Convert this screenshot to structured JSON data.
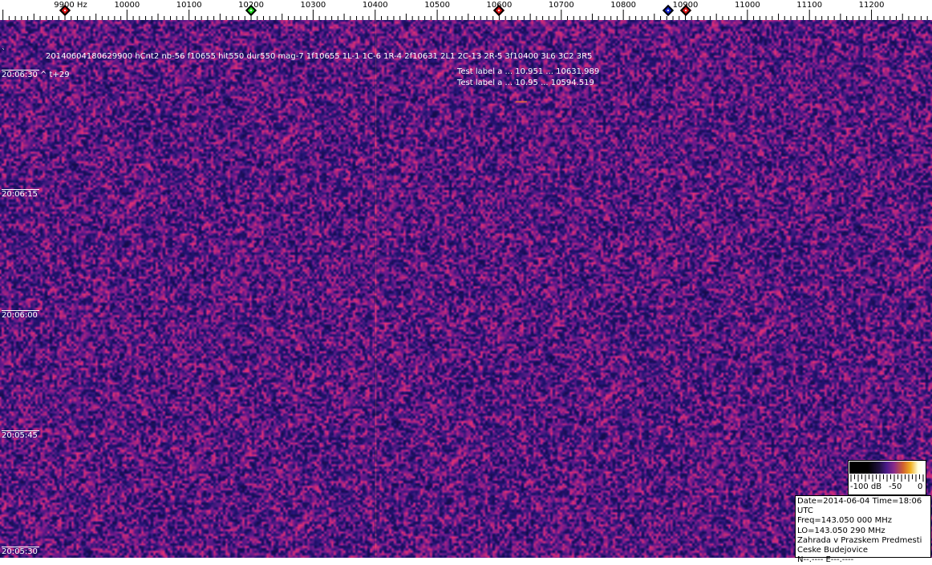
{
  "axis": {
    "unit_label": "9900 Hz",
    "freq_labels": [
      "10000",
      "10100",
      "10200",
      "10300",
      "10400",
      "10500",
      "10600",
      "10700",
      "10800",
      "10900",
      "11000",
      "11100",
      "11200"
    ],
    "freq_values": [
      10000,
      10100,
      10200,
      10300,
      10400,
      10500,
      10600,
      10700,
      10800,
      10900,
      11000,
      11100,
      11200
    ],
    "markers": [
      {
        "name": "red-marker",
        "freq": 9900,
        "color": "#dd1111"
      },
      {
        "name": "green-marker",
        "freq": 10200,
        "color": "#22dd22"
      },
      {
        "name": "red-marker",
        "freq": 10600,
        "color": "#dd1111"
      },
      {
        "name": "blue-marker",
        "freq": 10872,
        "color": "#1122cc"
      },
      {
        "name": "red-marker",
        "freq": 10900,
        "color": "#dd1111"
      }
    ]
  },
  "waterfall": {
    "detection_line": "20140604180629900 hCnt2 nb-56 f10655 hit550 dur550 mag-7 1f10655 1L-1 1C-6 1R-4 2f10631 2L1 2C-13 2R-5 3f10400 3L6 3C2 3R5",
    "backtick": "`",
    "time_note": "^ t+29",
    "test_label_1": "Test label a  ... 10.951 ... 10631.989",
    "test_label_2": "Test label a  ... 10.95 ... 10594.519",
    "time_labels": [
      "20:06:30",
      "20:06:15",
      "20:06:00",
      "20:05:45",
      "20:05:30"
    ]
  },
  "colorscale": {
    "labels": [
      "-100 dB",
      "-50",
      "0"
    ]
  },
  "info": {
    "date_time": "Date=2014-06-04 Time=18:06 UTC",
    "freq": "Freq=143.050 000 MHz",
    "lo": "LO=143.050 290 MHz",
    "location1": "Zahrada v Prazskem Predmesti",
    "location2": "Ceske Budejovice",
    "coords": "N--.---- E---.----"
  }
}
